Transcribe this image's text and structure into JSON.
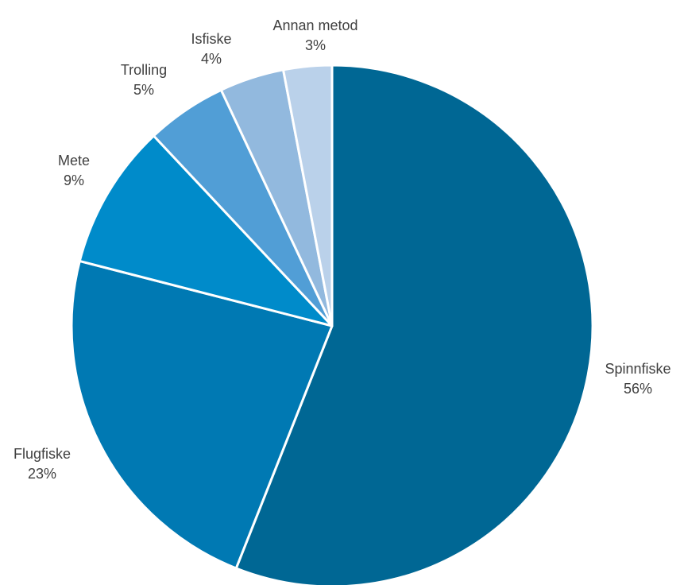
{
  "chart_data": {
    "type": "pie",
    "title": "",
    "slices": [
      {
        "label": "Spinnfiske",
        "value": 56,
        "value_label": "56%",
        "color": "#006794"
      },
      {
        "label": "Flugfiske",
        "value": 23,
        "value_label": "23%",
        "color": "#0079b3"
      },
      {
        "label": "Mete",
        "value": 9,
        "value_label": "9%",
        "color": "#008bca"
      },
      {
        "label": "Trolling",
        "value": 5,
        "value_label": "5%",
        "color": "#519ed6"
      },
      {
        "label": "Isfiske",
        "value": 4,
        "value_label": "4%",
        "color": "#92b9de"
      },
      {
        "label": "Annan metod",
        "value": 3,
        "value_label": "3%",
        "color": "#bad1ea"
      }
    ],
    "start_angle": "12 o'clock",
    "direction": "clockwise",
    "legend": "none",
    "data_labels": "outside, name and percent"
  }
}
